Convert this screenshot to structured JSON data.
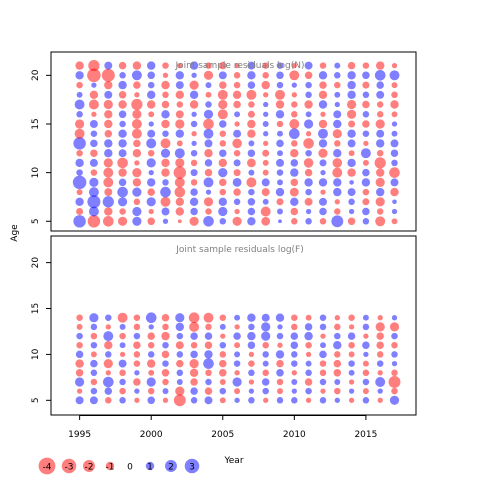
{
  "colors": {
    "negative": "#ff0000",
    "positive": "#0000ff",
    "panel_title": "#808080",
    "frame": "#000000"
  },
  "chart_data": [
    {
      "type": "bubble",
      "title": "Joint sample residuals log(N)",
      "xlabel": "",
      "ylabel": "Age",
      "xlim": [
        1993,
        2018.5
      ],
      "ylim": [
        4,
        22.4
      ],
      "yticks": [
        5,
        10,
        15,
        20
      ],
      "xticks": [],
      "years": [
        1995,
        1996,
        1997,
        1998,
        1999,
        2000,
        2001,
        2002,
        2003,
        2004,
        2005,
        2006,
        2007,
        2008,
        2009,
        2010,
        2011,
        2012,
        2013,
        2014,
        2015,
        2016,
        2017
      ],
      "ages": [
        5,
        6,
        7,
        8,
        9,
        10,
        11,
        12,
        13,
        14,
        15,
        16,
        17,
        18,
        19,
        20,
        21
      ],
      "residuals": [
        [
          2.2,
          -2.2,
          -1.6,
          -1.2,
          1.2,
          -0.8,
          0.4,
          -0.2,
          -1.2,
          1.6,
          0.6,
          -1.2,
          1.0,
          -1.1,
          0.2,
          -0.6,
          0.6,
          -0.6,
          2.0,
          -0.8,
          0.6,
          -1.4,
          -0.5
        ],
        [
          -0.7,
          1.4,
          -1.0,
          -0.6,
          1.2,
          -0.4,
          0.9,
          -1.0,
          0.8,
          -0.6,
          1.2,
          -0.4,
          0.8,
          -1.4,
          0.5,
          -0.8,
          0.4,
          0.8,
          -0.6,
          0.4,
          0.8,
          -0.6,
          0.4
        ],
        [
          1.0,
          2.4,
          1.8,
          1.2,
          -0.6,
          1.2,
          -1.4,
          -1.0,
          1.0,
          -1.2,
          1.0,
          0.6,
          0.8,
          0.5,
          -0.7,
          1.0,
          -0.9,
          0.9,
          -0.4,
          0.6,
          -0.7,
          -1.2,
          0.3
        ],
        [
          -0.5,
          1.4,
          -0.9,
          1.6,
          1.2,
          -0.8,
          1.6,
          -1.6,
          0.8,
          0.4,
          -0.6,
          -0.8,
          0.6,
          -0.9,
          1.0,
          -1.1,
          0.6,
          -0.4,
          1.0,
          0.9,
          -0.6,
          1.0,
          -1.0
        ],
        [
          2.6,
          1.2,
          -1.4,
          0.8,
          -1.0,
          1.0,
          0.6,
          -1.4,
          -0.6,
          1.4,
          -0.8,
          1.1,
          -1.4,
          0.9,
          0.5,
          -0.8,
          1.0,
          1.0,
          1.0,
          0.3,
          1.0,
          -1.2,
          0.9
        ],
        [
          0.6,
          -0.6,
          -1.4,
          -1.0,
          -1.2,
          0.4,
          -1.0,
          -2.2,
          0.7,
          -0.8,
          1.2,
          -0.7,
          0.5,
          -0.5,
          0.6,
          1.0,
          -0.8,
          0.4,
          -1.4,
          -1.0,
          0.8,
          -1.0,
          -1.6
        ],
        [
          1.0,
          0.9,
          -1.2,
          -1.6,
          -0.4,
          1.2,
          -1.0,
          -1.2,
          -0.6,
          0.8,
          -1.0,
          0.7,
          -1.1,
          -0.5,
          0.9,
          0.8,
          -1.3,
          0.7,
          -1.3,
          1.0,
          -0.5,
          -1.8,
          0.6
        ],
        [
          -0.6,
          -0.8,
          1.0,
          0.9,
          -1.0,
          -0.6,
          1.2,
          1.4,
          0.6,
          -1.0,
          0.8,
          -0.6,
          0.8,
          -0.7,
          0.5,
          -1.0,
          0.6,
          -1.2,
          1.0,
          -0.5,
          1.4,
          -0.6,
          0.8
        ],
        [
          2.2,
          0.8,
          1.0,
          1.0,
          -0.8,
          1.4,
          -1.4,
          -0.5,
          0.4,
          0.9,
          -0.6,
          -1.3,
          0.5,
          -0.4,
          0.8,
          -0.6,
          -1.6,
          1.0,
          -0.6,
          0.9,
          -0.4,
          1.0,
          0.9
        ],
        [
          -1.4,
          0.6,
          -0.8,
          1.0,
          -1.4,
          0.9,
          0.6,
          1.0,
          -0.4,
          1.4,
          -0.6,
          0.9,
          -1.0,
          0.4,
          0.5,
          1.6,
          -0.4,
          1.4,
          -1.2,
          1.0,
          0.6,
          0.9,
          0.5
        ],
        [
          -1.2,
          0.9,
          -1.0,
          0.6,
          -1.4,
          0.4,
          -1.0,
          -1.2,
          0.6,
          -1.6,
          0.8,
          -0.4,
          -1.0,
          0.5,
          -0.6,
          -1.4,
          1.2,
          -1.0,
          1.0,
          -0.7,
          -0.8,
          -1.2,
          0.4
        ],
        [
          0.6,
          -0.4,
          -1.0,
          0.8,
          -1.2,
          -0.5,
          1.0,
          -0.9,
          0.4,
          1.2,
          -1.4,
          0.5,
          -0.7,
          0.4,
          1.0,
          -0.6,
          0.5,
          -0.4,
          0.9,
          -1.2,
          0.6,
          -0.6,
          -0.5
        ],
        [
          1.4,
          -1.4,
          -1.2,
          -1.0,
          -1.8,
          -1.0,
          -0.8,
          -0.6,
          -1.0,
          0.6,
          -1.2,
          -0.8,
          -0.6,
          0.4,
          -1.0,
          -0.6,
          -1.0,
          1.0,
          0.4,
          -1.2,
          -0.8,
          -0.6,
          -1.0
        ],
        [
          0.5,
          -1.0,
          0.9,
          -0.8,
          -0.4,
          1.0,
          -0.6,
          -1.0,
          1.0,
          -0.5,
          -1.4,
          -1.0,
          -1.4,
          -0.4,
          -1.4,
          -0.4,
          0.6,
          -1.0,
          0.5,
          1.0,
          0.6,
          0.9,
          -0.6
        ],
        [
          -0.6,
          0.4,
          -1.0,
          1.0,
          -0.8,
          0.6,
          -1.0,
          0.9,
          -1.2,
          0.5,
          -0.8,
          -0.6,
          0.8,
          -1.0,
          0.6,
          0.4,
          0.6,
          -0.8,
          -0.6,
          1.0,
          -0.7,
          0.8,
          -0.5
        ],
        [
          1.0,
          -2.6,
          -2.4,
          0.6,
          1.4,
          0.8,
          -0.4,
          1.0,
          0.4,
          -1.2,
          0.9,
          -0.6,
          1.0,
          -0.6,
          0.8,
          -1.4,
          -0.8,
          1.0,
          0.6,
          1.0,
          0.8,
          1.6,
          1.4
        ],
        [
          -1.0,
          -1.8,
          0.9,
          -0.8,
          -1.0,
          1.0,
          -0.6,
          -0.4,
          1.0,
          -0.6,
          -0.8,
          -0.4,
          0.9,
          -0.6,
          0.6,
          -0.4,
          0.9,
          -0.6,
          0.5,
          -0.8,
          -0.6,
          -1.0,
          -0.4
        ]
      ]
    },
    {
      "type": "bubble",
      "title": "Joint sample residuals log(F)",
      "xlabel": "Year",
      "ylabel": "",
      "xlim": [
        1993,
        2018.5
      ],
      "ylim": [
        3.4,
        22.9
      ],
      "yticks": [
        5,
        10,
        15,
        20
      ],
      "xticks": [
        1995,
        2000,
        2005,
        2010,
        2015
      ],
      "years": [
        1995,
        1996,
        1997,
        1998,
        1999,
        2000,
        2001,
        2002,
        2003,
        2004,
        2005,
        2006,
        2007,
        2008,
        2009,
        2010,
        2011,
        2012,
        2013,
        2014,
        2015,
        2016,
        2017
      ],
      "ages": [
        5,
        6,
        7,
        8,
        9,
        10,
        11,
        12,
        13,
        14
      ],
      "residuals": [
        [
          0.9,
          0.9,
          -0.6,
          0.6,
          -0.4,
          0.8,
          -0.4,
          -2.0,
          0.6,
          0.9,
          -0.5,
          0.4,
          0.6,
          -0.4,
          0.6,
          0.6,
          -0.4,
          0.6,
          0.4,
          -0.4,
          0.6,
          -0.4,
          1.2
        ],
        [
          -0.4,
          0.6,
          0.8,
          -0.6,
          0.4,
          -0.6,
          0.5,
          -1.2,
          0.8,
          -0.8,
          0.6,
          -0.5,
          0.4,
          0.6,
          -0.5,
          0.4,
          0.6,
          -0.4,
          -0.6,
          0.4,
          -0.5,
          0.4,
          -0.6
        ],
        [
          1.2,
          -0.6,
          1.6,
          0.6,
          -0.8,
          1.2,
          -0.6,
          0.5,
          -0.8,
          0.6,
          -0.5,
          1.2,
          -0.4,
          0.8,
          -0.6,
          0.5,
          -0.8,
          0.6,
          0.5,
          -0.4,
          0.6,
          1.4,
          -2.0
        ],
        [
          -0.8,
          0.6,
          -0.4,
          -0.6,
          0.4,
          -0.5,
          -0.8,
          0.6,
          -1.0,
          -0.6,
          -0.8,
          -0.4,
          0.6,
          -0.6,
          0.8,
          -0.4,
          0.6,
          -0.6,
          -0.8,
          0.5,
          -0.6,
          -0.4,
          -0.6
        ],
        [
          -1.0,
          0.8,
          -1.2,
          0.9,
          -0.6,
          -1.0,
          0.6,
          -0.8,
          -1.2,
          1.6,
          -0.8,
          0.6,
          -0.6,
          0.5,
          -0.8,
          0.6,
          0.5,
          -0.6,
          -0.8,
          0.6,
          -0.5,
          0.6,
          0.4
        ],
        [
          0.8,
          -0.5,
          0.6,
          -0.4,
          -0.6,
          0.6,
          -0.8,
          0.6,
          0.8,
          1.0,
          -0.6,
          0.5,
          -0.4,
          0.6,
          1.0,
          0.6,
          -0.4,
          0.8,
          -0.6,
          -0.5,
          0.4,
          -0.6,
          0.6
        ],
        [
          -0.6,
          0.6,
          -1.0,
          0.5,
          -0.8,
          -0.6,
          0.6,
          -0.9,
          -0.6,
          -0.8,
          0.6,
          -0.5,
          0.8,
          -0.6,
          -0.4,
          0.8,
          -0.6,
          0.5,
          1.0,
          -0.6,
          0.8,
          -0.8,
          -0.6
        ],
        [
          0.6,
          -0.6,
          1.4,
          -0.6,
          0.6,
          -0.8,
          -1.0,
          0.6,
          0.8,
          0.8,
          -0.4,
          0.8,
          1.0,
          1.2,
          0.6,
          0.8,
          1.0,
          -0.4,
          0.6,
          0.8,
          -0.4,
          -0.8,
          0.6
        ],
        [
          -0.5,
          0.6,
          -0.4,
          0.5,
          -0.6,
          0.4,
          -0.6,
          1.0,
          -1.4,
          -0.6,
          0.5,
          -0.4,
          0.6,
          1.2,
          0.4,
          -0.6,
          0.8,
          0.6,
          -0.6,
          -0.4,
          0.6,
          -1.2,
          -1.2
        ],
        [
          -0.6,
          1.2,
          0.6,
          -1.4,
          -0.6,
          1.6,
          -0.8,
          1.2,
          -1.6,
          -1.4,
          -0.6,
          0.5,
          1.0,
          0.9,
          1.0,
          -0.6,
          -0.5,
          0.6,
          -0.4,
          -0.6,
          0.5,
          -0.4,
          0.4
        ]
      ]
    }
  ],
  "legend": {
    "items": [
      {
        "value": -4,
        "label": "-4"
      },
      {
        "value": -3,
        "label": "-3"
      },
      {
        "value": -2,
        "label": "-2"
      },
      {
        "value": -1,
        "label": "-1"
      },
      {
        "value": 0,
        "label": "0"
      },
      {
        "value": 1,
        "label": "1"
      },
      {
        "value": 2,
        "label": "2"
      },
      {
        "value": 3,
        "label": "3"
      }
    ]
  }
}
